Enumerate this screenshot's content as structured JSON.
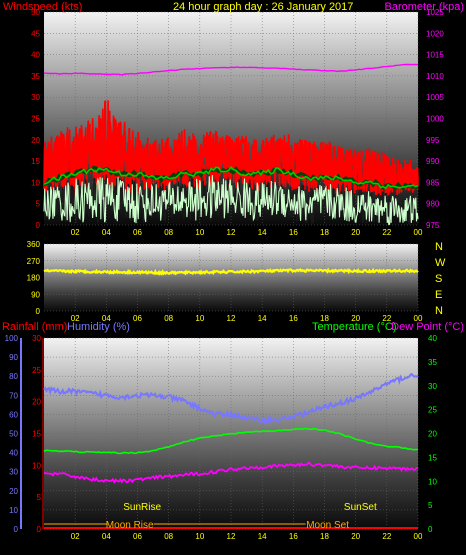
{
  "colors": {
    "windspeed": "#ff0000",
    "gust": "#ff0000",
    "avgwind": "#00cc00",
    "avgwind_glow": "#004400",
    "wind_light": "#ccffcc",
    "barometer": "#ff00ff",
    "direction": "#ffff00",
    "compass": "#ffff00",
    "rain": "#ff0000",
    "humidity": "#7777ff",
    "temperature": "#00ff00",
    "dewpoint": "#ff00ff",
    "events": "#ffff00",
    "moon": "#ffaa00",
    "title": "#ffff00",
    "ticks": "#ffff00",
    "left_axis": "#ff0000",
    "right_axis": "#ff00ff",
    "humidity_axis": "#7777ff",
    "temp_axis": "#00ff00"
  },
  "chart_data": [
    {
      "type": "line",
      "title": "24 hour graph day : 26 January 2017",
      "ylabel_left": "Windspeed (kts)",
      "ylabel_right": "Barometer (kpa)",
      "ylim_left": [
        0,
        50
      ],
      "yticks_left": [
        "0",
        "5",
        "10",
        "15",
        "20",
        "25",
        "30",
        "35",
        "40",
        "45",
        "50"
      ],
      "ylim_right": [
        975,
        1025
      ],
      "yticks_right": [
        "975",
        "980",
        "985",
        "990",
        "995",
        "1000",
        "1005",
        "1010",
        "1015",
        "1020",
        "1025"
      ],
      "xticks": [
        "02",
        "04",
        "06",
        "08",
        "10",
        "12",
        "14",
        "16",
        "18",
        "20",
        "22",
        "00"
      ],
      "grid": true,
      "series": [
        {
          "key": "gust",
          "axis": "left",
          "x": [
            0,
            1,
            2,
            3,
            4,
            5,
            6,
            7,
            8,
            9,
            10,
            11,
            12,
            13,
            14,
            15,
            16,
            17,
            18,
            19,
            20,
            21,
            22,
            23,
            24
          ],
          "min": [
            8,
            8,
            7,
            9,
            7,
            8,
            7,
            8,
            8,
            9,
            8,
            9,
            9,
            8,
            8,
            9,
            8,
            7,
            8,
            7,
            7,
            7,
            7,
            7,
            7
          ],
          "max": [
            20,
            22,
            24,
            25,
            30,
            25,
            22,
            20,
            21,
            23,
            22,
            22,
            21,
            21,
            20,
            22,
            21,
            20,
            20,
            19,
            18,
            18,
            17,
            16,
            15
          ]
        },
        {
          "key": "windspeed",
          "axis": "left",
          "x": [
            0,
            1,
            2,
            3,
            4,
            5,
            6,
            7,
            8,
            9,
            10,
            11,
            12,
            13,
            14,
            15,
            16,
            17,
            18,
            19,
            20,
            21,
            22,
            23,
            24
          ],
          "min": [
            1,
            1,
            0,
            1,
            0,
            1,
            0,
            1,
            1,
            1,
            1,
            1,
            2,
            1,
            1,
            2,
            1,
            0,
            1,
            1,
            0,
            0,
            0,
            0,
            0
          ],
          "max": [
            9,
            10,
            11,
            11,
            12,
            11,
            11,
            10,
            10,
            11,
            11,
            12,
            11,
            11,
            10,
            11,
            10,
            9,
            10,
            9,
            9,
            8,
            8,
            7,
            7
          ]
        },
        {
          "key": "avgwind",
          "axis": "left",
          "x": [
            0,
            1,
            2,
            3,
            4,
            5,
            6,
            7,
            8,
            9,
            10,
            11,
            12,
            13,
            14,
            15,
            16,
            17,
            18,
            19,
            20,
            21,
            22,
            23,
            24
          ],
          "values": [
            10,
            11,
            12,
            13,
            13,
            12,
            12,
            11,
            11,
            12,
            12,
            13,
            13,
            12,
            12,
            13,
            12,
            11,
            11,
            11,
            10,
            10,
            9,
            9,
            9
          ]
        },
        {
          "key": "barometer",
          "axis": "right",
          "x": [
            0,
            1,
            2,
            3,
            4,
            5,
            6,
            7,
            8,
            9,
            10,
            11,
            12,
            13,
            14,
            15,
            16,
            17,
            18,
            19,
            20,
            21,
            22,
            23,
            24
          ],
          "values": [
            1010.6,
            1010.5,
            1010.6,
            1010.5,
            1010.4,
            1010.3,
            1010.6,
            1010.9,
            1011.2,
            1011.6,
            1011.7,
            1011.9,
            1012.0,
            1012.0,
            1011.9,
            1011.8,
            1011.6,
            1011.4,
            1011.2,
            1011.1,
            1011.4,
            1011.8,
            1012.2,
            1012.6,
            1012.7
          ]
        }
      ]
    },
    {
      "type": "line",
      "ylim": [
        0,
        360
      ],
      "yticks": [
        "0",
        "90",
        "180",
        "270",
        "360"
      ],
      "compass": [
        "N",
        "W",
        "S",
        "E",
        "N"
      ],
      "xticks": [
        "02",
        "04",
        "06",
        "08",
        "10",
        "12",
        "14",
        "16",
        "18",
        "20",
        "22",
        "00"
      ],
      "series": [
        {
          "key": "direction",
          "x": [
            0,
            2,
            4,
            6,
            8,
            10,
            12,
            14,
            16,
            18,
            20,
            22,
            24
          ],
          "values": [
            215,
            213,
            210,
            208,
            205,
            208,
            210,
            214,
            218,
            216,
            215,
            215,
            216
          ]
        }
      ]
    },
    {
      "type": "line",
      "ylabel_left_1": "Rainfall (mm)",
      "ylabel_left_2": "Humidity (%)",
      "ylabel_right_1": "Temperature (°C)",
      "ylabel_right_2": "Dew Point (°C)",
      "ylim_humidity": [
        0,
        100
      ],
      "yticks_humidity": [
        "0",
        "10",
        "20",
        "30",
        "40",
        "50",
        "60",
        "70",
        "80",
        "90",
        "100"
      ],
      "ylim_rain": [
        0,
        30
      ],
      "yticks_rain": [
        "0",
        "5",
        "10",
        "15",
        "20",
        "25",
        "30"
      ],
      "ylim_temp": [
        0,
        40
      ],
      "yticks_temp": [
        "0",
        "5",
        "10",
        "15",
        "20",
        "25",
        "30",
        "35",
        "40"
      ],
      "xticks": [
        "02",
        "04",
        "06",
        "08",
        "10",
        "12",
        "14",
        "16",
        "18",
        "20",
        "22",
        "00"
      ],
      "annotations": {
        "sunrise": "SunRise",
        "sunset": "SunSet",
        "moonrise": "Moon Rise",
        "moonset": "Moon Set"
      },
      "events": {
        "sunrise_hour": 6.3,
        "sunset_hour": 20.3,
        "moonrise_hour": 5.5,
        "moonset_hour": 18.2
      },
      "series": [
        {
          "key": "humidity",
          "axis": "humidity",
          "x": [
            0,
            1,
            2,
            3,
            4,
            5,
            6,
            7,
            8,
            9,
            10,
            11,
            12,
            13,
            14,
            15,
            16,
            17,
            18,
            19,
            20,
            21,
            22,
            23,
            24
          ],
          "values": [
            73,
            72,
            72,
            71,
            70,
            69,
            70,
            70,
            69,
            67,
            63,
            60,
            60,
            58,
            57,
            57,
            59,
            61,
            64,
            66,
            68,
            72,
            76,
            79,
            81
          ]
        },
        {
          "key": "temperature",
          "axis": "temp",
          "x": [
            0,
            1,
            2,
            3,
            4,
            5,
            6,
            7,
            8,
            9,
            10,
            11,
            12,
            13,
            14,
            15,
            16,
            17,
            18,
            19,
            20,
            21,
            22,
            23,
            24
          ],
          "values": [
            16.4,
            16.3,
            16.2,
            16.1,
            16.0,
            15.9,
            16.0,
            16.4,
            17.2,
            18.3,
            19.0,
            19.5,
            19.9,
            20.3,
            20.4,
            20.6,
            20.9,
            21.0,
            20.7,
            19.9,
            18.8,
            17.9,
            17.3,
            17.0,
            16.6
          ]
        },
        {
          "key": "dewpoint",
          "axis": "temp",
          "x": [
            0,
            1,
            2,
            3,
            4,
            5,
            6,
            7,
            8,
            9,
            10,
            11,
            12,
            13,
            14,
            15,
            16,
            17,
            18,
            19,
            20,
            21,
            22,
            23,
            24
          ],
          "values": [
            11.6,
            11.5,
            11.0,
            10.4,
            10.2,
            10.0,
            10.3,
            10.7,
            11.0,
            11.3,
            11.6,
            12.0,
            12.5,
            12.8,
            13.0,
            13.2,
            13.4,
            13.6,
            13.4,
            13.1,
            12.8,
            12.8,
            12.8,
            12.6,
            12.6
          ]
        },
        {
          "key": "rain",
          "axis": "rain",
          "x": [
            0,
            24
          ],
          "values": [
            0,
            0
          ]
        }
      ]
    }
  ]
}
